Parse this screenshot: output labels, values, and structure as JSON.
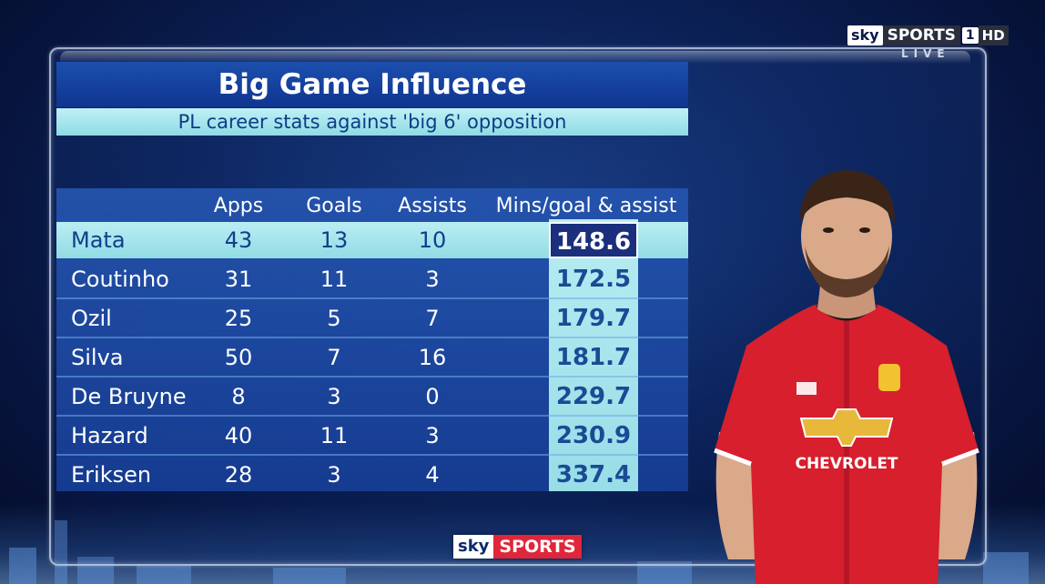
{
  "broadcaster": {
    "sky": "sky",
    "sports": "SPORTS",
    "channel": "1",
    "hd": "HD",
    "live": "LIVE"
  },
  "graphic": {
    "title": "Big Game Influence",
    "subtitle": "PL career stats against 'big 6' opposition"
  },
  "table": {
    "headers": [
      "",
      "Apps",
      "Goals",
      "Assists",
      "Mins/goal & assist"
    ],
    "rows": [
      {
        "name": "Mata",
        "apps": "43",
        "goals": "13",
        "assists": "10",
        "mins": "148.6"
      },
      {
        "name": "Coutinho",
        "apps": "31",
        "goals": "11",
        "assists": "3",
        "mins": "172.5"
      },
      {
        "name": "Ozil",
        "apps": "25",
        "goals": "5",
        "assists": "7",
        "mins": "179.7"
      },
      {
        "name": "Silva",
        "apps": "50",
        "goals": "7",
        "assists": "16",
        "mins": "181.7"
      },
      {
        "name": "De Bruyne",
        "apps": "8",
        "goals": "3",
        "assists": "0",
        "mins": "229.7"
      },
      {
        "name": "Hazard",
        "apps": "40",
        "goals": "11",
        "assists": "3",
        "mins": "230.9"
      },
      {
        "name": "Eriksen",
        "apps": "28",
        "goals": "3",
        "assists": "4",
        "mins": "337.4"
      }
    ]
  },
  "footer_logo": {
    "sky": "sky",
    "sports": "SPORTS"
  },
  "player_shirt": {
    "sponsor": "CHEVROLET",
    "colors": {
      "shirt": "#d71f2e",
      "trim": "#ffffff",
      "skin": "#d9a98a",
      "hair": "#3a2418"
    }
  },
  "colors": {
    "title_bar": "#1c4fae",
    "subtitle_bar": "#9fe2ea",
    "highlight": "#1b2f7d"
  }
}
